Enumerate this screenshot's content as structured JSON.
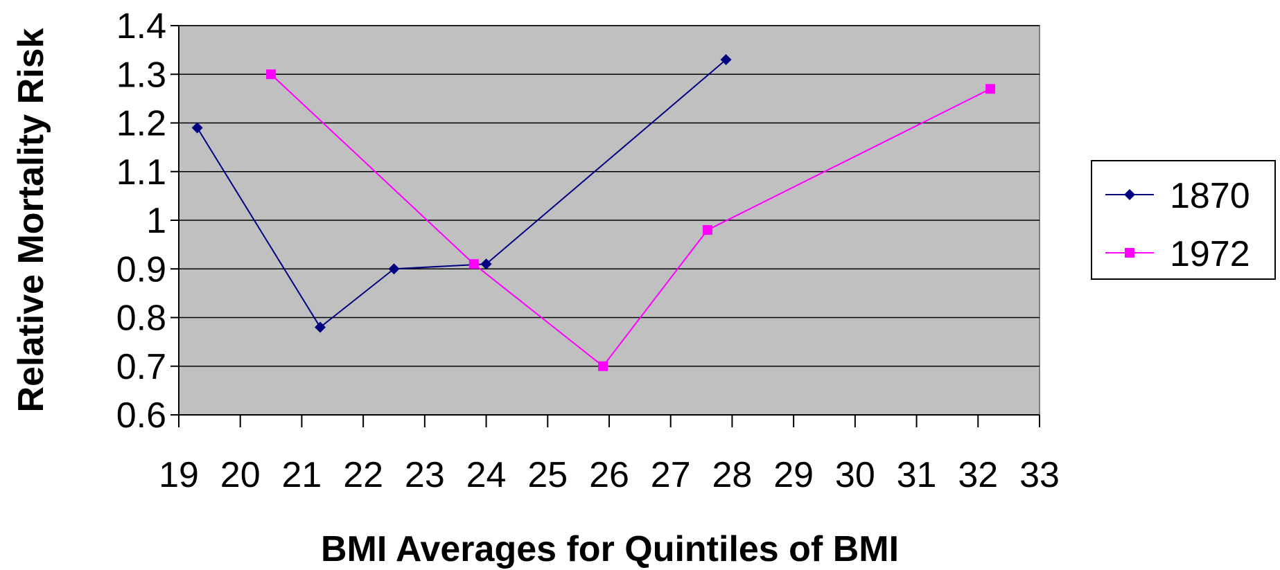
{
  "chart_data": {
    "type": "line",
    "title": "",
    "xlabel": "BMI Averages for Quintiles of BMI",
    "ylabel": "Relative Mortality Risk",
    "xlim": [
      19,
      33
    ],
    "ylim": [
      0.6,
      1.4
    ],
    "xticks": [
      "19",
      "20",
      "21",
      "22",
      "23",
      "24",
      "25",
      "26",
      "27",
      "28",
      "29",
      "30",
      "31",
      "32",
      "33"
    ],
    "yticks": [
      "0.6",
      "0.7",
      "0.8",
      "0.9",
      "1",
      "1.1",
      "1.2",
      "1.3",
      "1.4"
    ],
    "grid": true,
    "legend_position": "right",
    "plot_background": "#c0c0c0",
    "series": [
      {
        "name": "1870",
        "color": "#000080",
        "marker": "diamond",
        "x": [
          19.3,
          21.3,
          22.5,
          24.0,
          27.9
        ],
        "y": [
          1.19,
          0.78,
          0.9,
          0.91,
          1.33
        ]
      },
      {
        "name": "1972",
        "color": "#ff00ff",
        "marker": "square",
        "x": [
          20.5,
          23.8,
          25.9,
          27.6,
          32.2
        ],
        "y": [
          1.3,
          0.91,
          0.7,
          0.98,
          1.27
        ]
      }
    ]
  }
}
